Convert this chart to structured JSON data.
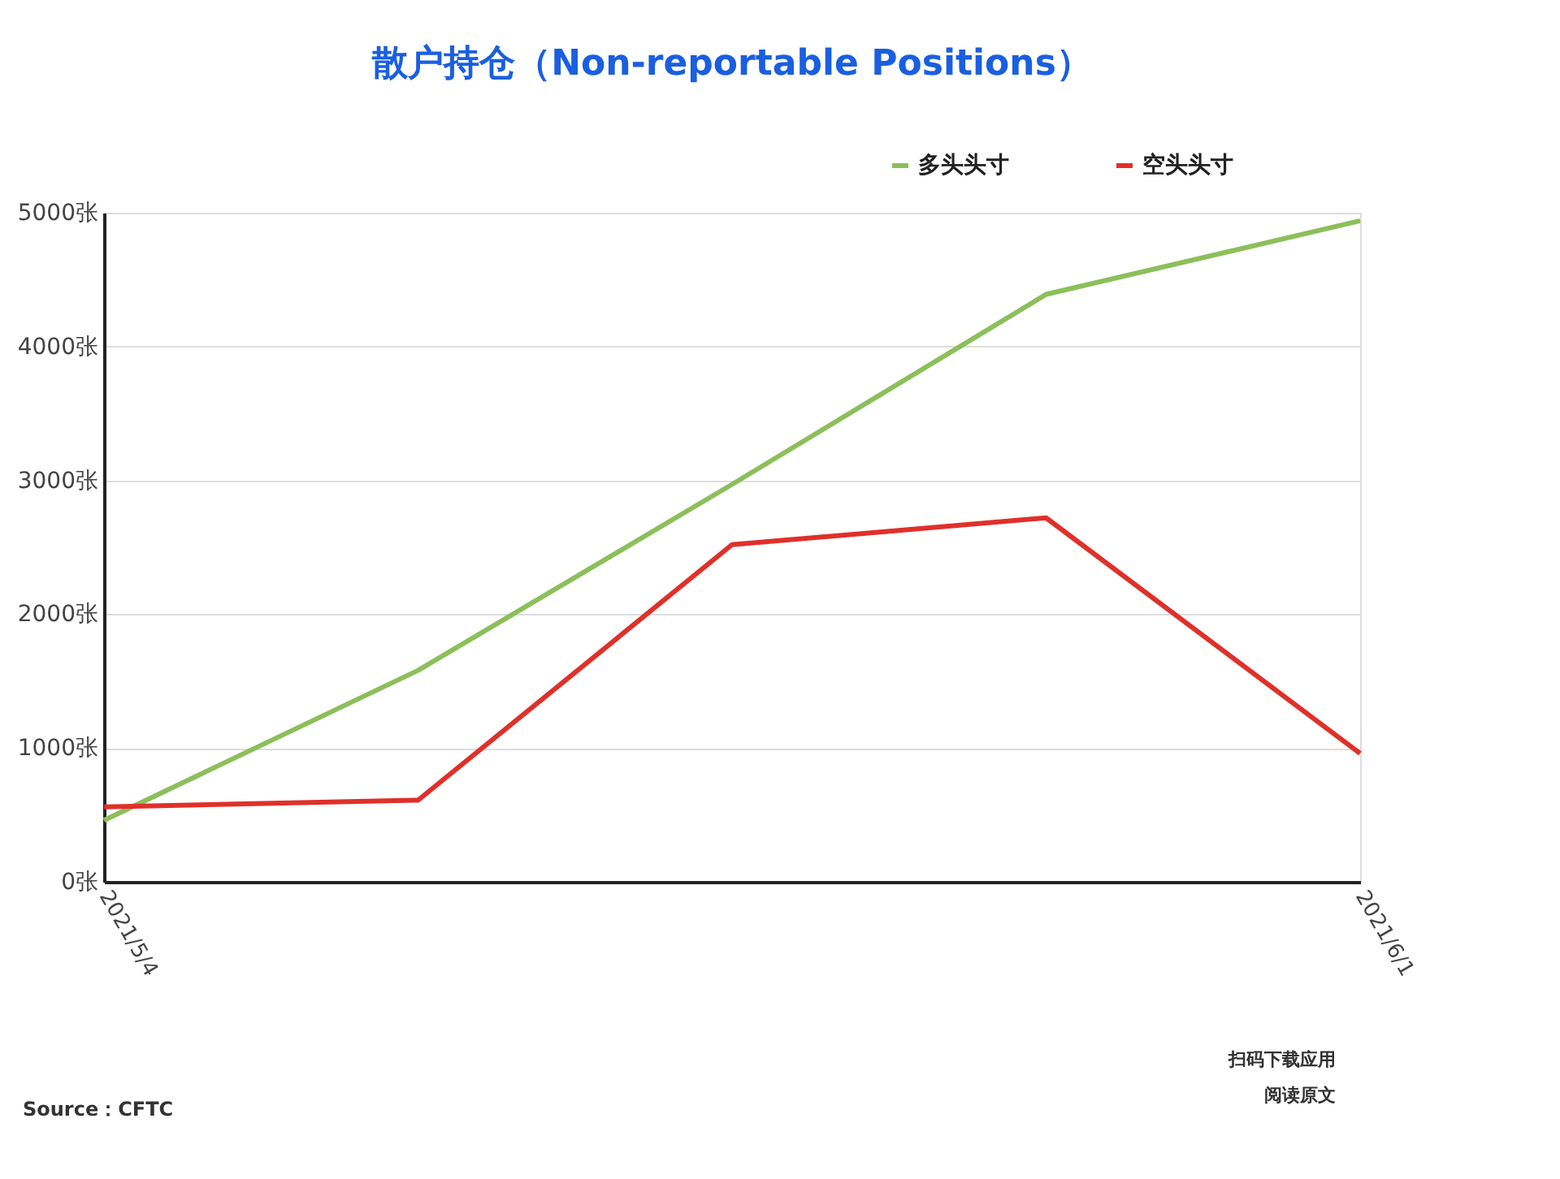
{
  "chart_data": {
    "type": "line",
    "title": "散户持仓（Non-reportable Positions）",
    "categories": [
      "2021/5/4",
      null,
      null,
      null,
      "2021/6/1"
    ],
    "series": [
      {
        "name": "多头头寸",
        "color": "#8cbf5a",
        "values": [
          460,
          1580,
          2970,
          4390,
          4940
        ]
      },
      {
        "name": "空头头寸",
        "color": "#e0302a",
        "values": [
          560,
          610,
          2520,
          2720,
          960
        ]
      }
    ],
    "ylim": [
      0,
      5000
    ],
    "yticks": [
      {
        "value": 0,
        "label": "0张"
      },
      {
        "value": 1000,
        "label": "1000张"
      },
      {
        "value": 2000,
        "label": "2000张"
      },
      {
        "value": 3000,
        "label": "3000张"
      },
      {
        "value": 4000,
        "label": "4000张"
      },
      {
        "value": 5000,
        "label": "5000张"
      }
    ],
    "grid": "y",
    "legend": "top right",
    "marker": "none",
    "line_style": "solid",
    "annotations": [
      "Source：CFTC",
      "扫码下载应用",
      "阅读原文"
    ]
  }
}
